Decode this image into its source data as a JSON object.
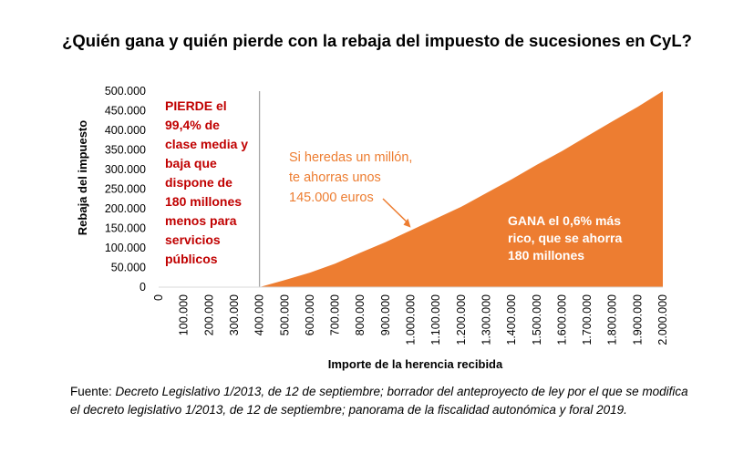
{
  "chart_data": {
    "type": "area",
    "title": "¿Quién gana y quién pierde con la rebaja del impuesto de sucesiones en CyL?",
    "xlabel": "Importe de la herencia recibida",
    "ylabel": "Rebaja del impuesto",
    "xlim": [
      0,
      2000000
    ],
    "ylim": [
      0,
      500000
    ],
    "x_ticks": [
      "0",
      "100.000",
      "200.000",
      "300.000",
      "400.000",
      "500.000",
      "600.000",
      "700.000",
      "800.000",
      "900.000",
      "1.000.000",
      "1.100.000",
      "1.200.000",
      "1.300.000",
      "1.400.000",
      "1.500.000",
      "1.600.000",
      "1.700.000",
      "1.800.000",
      "1.900.000",
      "2.000.000"
    ],
    "y_ticks": [
      "0",
      "50.000",
      "100.000",
      "150.000",
      "200.000",
      "250.000",
      "300.000",
      "350.000",
      "400.000",
      "450.000",
      "500.000"
    ],
    "x": [
      0,
      400000,
      500000,
      600000,
      700000,
      800000,
      900000,
      1000000,
      1100000,
      1200000,
      1300000,
      1400000,
      1500000,
      1600000,
      1700000,
      1800000,
      1900000,
      2000000
    ],
    "series": [
      {
        "values": [
          0,
          0,
          18000,
          37000,
          60000,
          88000,
          115000,
          145000,
          175000,
          205000,
          240000,
          275000,
          312000,
          347000,
          385000,
          423000,
          460000,
          500000
        ]
      }
    ],
    "threshold_x": 400000,
    "grid": false,
    "annotations": {
      "left_lines": [
        "PIERDE el",
        "99,4% de",
        "clase media y",
        "baja que",
        "dispone de",
        "180 millones",
        "menos para",
        "servicios",
        "públicos"
      ],
      "middle_lines": [
        "Si heredas un millón,",
        "te ahorras unos",
        "145.000 euros"
      ],
      "right_lines": [
        "GANA el 0,6% más",
        "rico, que se ahorra",
        "180 millones"
      ]
    },
    "colors": {
      "area": "#ed7d31",
      "loser_text": "#c00000",
      "middle_text": "#ed7d31",
      "threshold_line": "#a6a6a6"
    }
  },
  "source": {
    "label": "Fuente:",
    "text": "Decreto Legislativo 1/2013, de 12 de septiembre; borrador del anteproyecto de ley por el que se modifica el decreto legislativo 1/2013, de 12 de septiembre; panorama de la fiscalidad autonómica y foral 2019."
  }
}
